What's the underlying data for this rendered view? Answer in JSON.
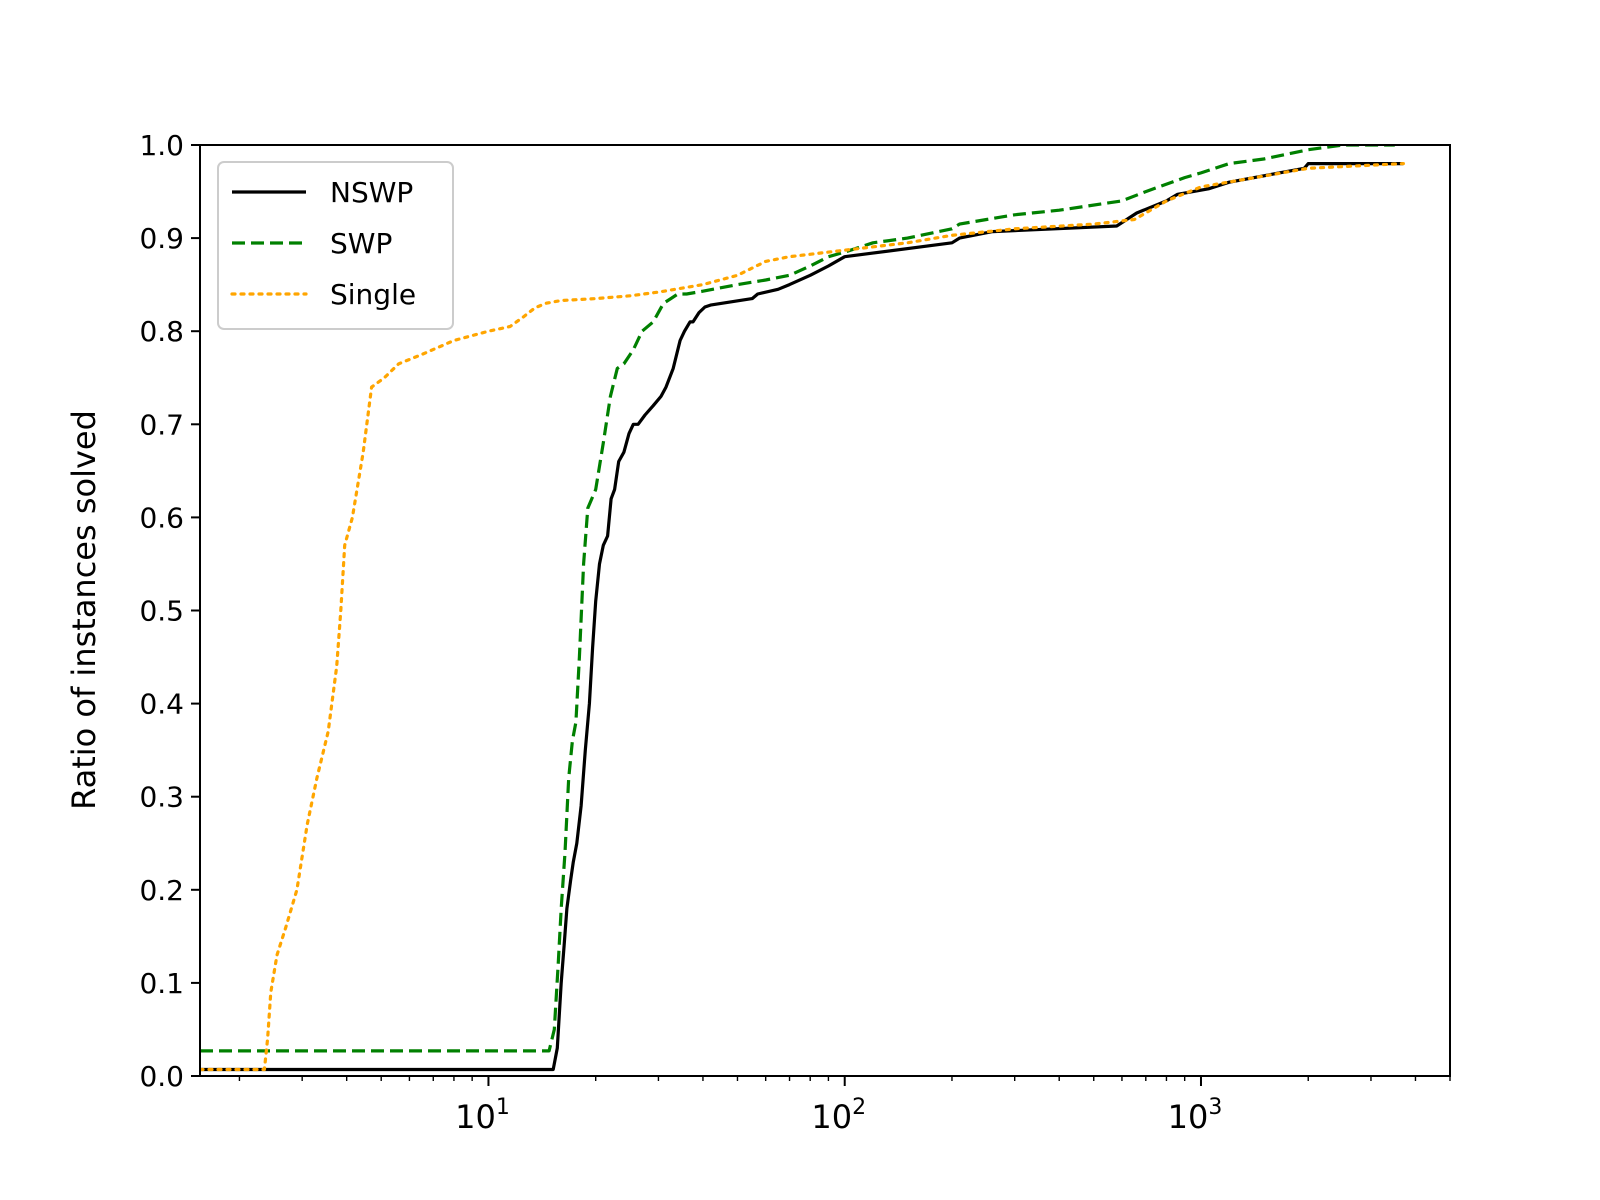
{
  "chart_data": {
    "type": "line",
    "title": "",
    "xlabel": "",
    "ylabel": "Ratio of instances solved",
    "xscale": "log",
    "xlim": [
      1.55,
      5000
    ],
    "ylim": [
      0,
      1.0
    ],
    "grid": false,
    "legend_position": "top-left",
    "y_ticks": [
      "0.0",
      "0.1",
      "0.2",
      "0.3",
      "0.4",
      "0.5",
      "0.6",
      "0.7",
      "0.8",
      "0.9",
      "1.0"
    ],
    "x_ticks": [
      {
        "value": 10,
        "base": "10",
        "exp": "1"
      },
      {
        "value": 100,
        "base": "10",
        "exp": "2"
      },
      {
        "value": 1000,
        "base": "10",
        "exp": "3"
      }
    ],
    "series": [
      {
        "name": "NSWP",
        "color": "#000000",
        "dash": "solid",
        "x": [
          1.55,
          15.2,
          15.6,
          16.0,
          16.3,
          16.6,
          17.0,
          17.3,
          17.7,
          18.2,
          18.7,
          19.2,
          19.6,
          20.0,
          20.5,
          21.0,
          21.6,
          22.1,
          22.6,
          23.2,
          24.0,
          24.8,
          25.5,
          26.3,
          27.5,
          29.0,
          30.5,
          31.5,
          33.0,
          34.5,
          35.5,
          36.8,
          37.5,
          39.0,
          40.5,
          42.0,
          55.0,
          57.0,
          65.0,
          70.0,
          80.0,
          90.0,
          100.0,
          200.0,
          210.0,
          260.0,
          580.0,
          660.0,
          800.0,
          860.0,
          1050.0,
          1200.0,
          1950.0,
          2000.0,
          3700.0
        ],
        "y": [
          0.007,
          0.007,
          0.03,
          0.1,
          0.14,
          0.18,
          0.21,
          0.23,
          0.25,
          0.29,
          0.35,
          0.4,
          0.46,
          0.51,
          0.55,
          0.57,
          0.58,
          0.62,
          0.63,
          0.66,
          0.67,
          0.69,
          0.7,
          0.7,
          0.71,
          0.72,
          0.73,
          0.74,
          0.76,
          0.79,
          0.8,
          0.81,
          0.81,
          0.82,
          0.826,
          0.828,
          0.835,
          0.84,
          0.845,
          0.85,
          0.86,
          0.87,
          0.88,
          0.895,
          0.9,
          0.907,
          0.913,
          0.927,
          0.94,
          0.947,
          0.953,
          0.96,
          0.975,
          0.98,
          0.98
        ]
      },
      {
        "name": "SWP",
        "color": "#008000",
        "dash": "dashed",
        "x": [
          1.55,
          14.8,
          15.3,
          15.7,
          16.0,
          16.4,
          16.8,
          17.2,
          17.6,
          18.0,
          18.5,
          19.0,
          19.5,
          20.0,
          21.0,
          22.0,
          23.0,
          24.0,
          25.5,
          27.0,
          29.0,
          31.0,
          32.5,
          34.0,
          36.0,
          40.0,
          50.0,
          60.0,
          70.0,
          80.0,
          90.0,
          100.0,
          120.0,
          150.0,
          200.0,
          210.0,
          250.0,
          300.0,
          400.0,
          600.0,
          700.0,
          900.0,
          1000.0,
          1200.0,
          1500.0,
          2000.0,
          2500.0,
          3500.0
        ],
        "y": [
          0.027,
          0.027,
          0.05,
          0.12,
          0.18,
          0.24,
          0.32,
          0.36,
          0.38,
          0.45,
          0.55,
          0.61,
          0.62,
          0.63,
          0.68,
          0.73,
          0.76,
          0.765,
          0.78,
          0.8,
          0.81,
          0.83,
          0.835,
          0.84,
          0.84,
          0.843,
          0.85,
          0.855,
          0.86,
          0.87,
          0.88,
          0.885,
          0.895,
          0.9,
          0.91,
          0.915,
          0.92,
          0.925,
          0.93,
          0.94,
          0.95,
          0.965,
          0.97,
          0.98,
          0.985,
          0.995,
          1.0,
          1.0
        ]
      },
      {
        "name": "Single",
        "color": "#FFA500",
        "dash": "dotted",
        "x": [
          1.55,
          2.35,
          2.4,
          2.45,
          2.55,
          2.7,
          2.9,
          3.1,
          3.3,
          3.55,
          3.75,
          3.85,
          3.95,
          4.15,
          4.45,
          4.7,
          5.1,
          5.6,
          6.5,
          8.0,
          10.0,
          11.5,
          12.5,
          13.5,
          14.5,
          16.0,
          20.0,
          25.0,
          30.0,
          40.0,
          50.0,
          60.0,
          70.0,
          100.0,
          150.0,
          200.0,
          300.0,
          500.0,
          650.0,
          800.0,
          1000.0,
          2000.0,
          3700.0
        ],
        "y": [
          0.007,
          0.007,
          0.04,
          0.09,
          0.13,
          0.16,
          0.2,
          0.27,
          0.32,
          0.37,
          0.44,
          0.5,
          0.57,
          0.6,
          0.67,
          0.74,
          0.75,
          0.765,
          0.775,
          0.79,
          0.8,
          0.805,
          0.815,
          0.825,
          0.83,
          0.833,
          0.835,
          0.838,
          0.842,
          0.85,
          0.86,
          0.875,
          0.88,
          0.887,
          0.895,
          0.903,
          0.91,
          0.915,
          0.92,
          0.94,
          0.955,
          0.975,
          0.98
        ]
      }
    ]
  }
}
